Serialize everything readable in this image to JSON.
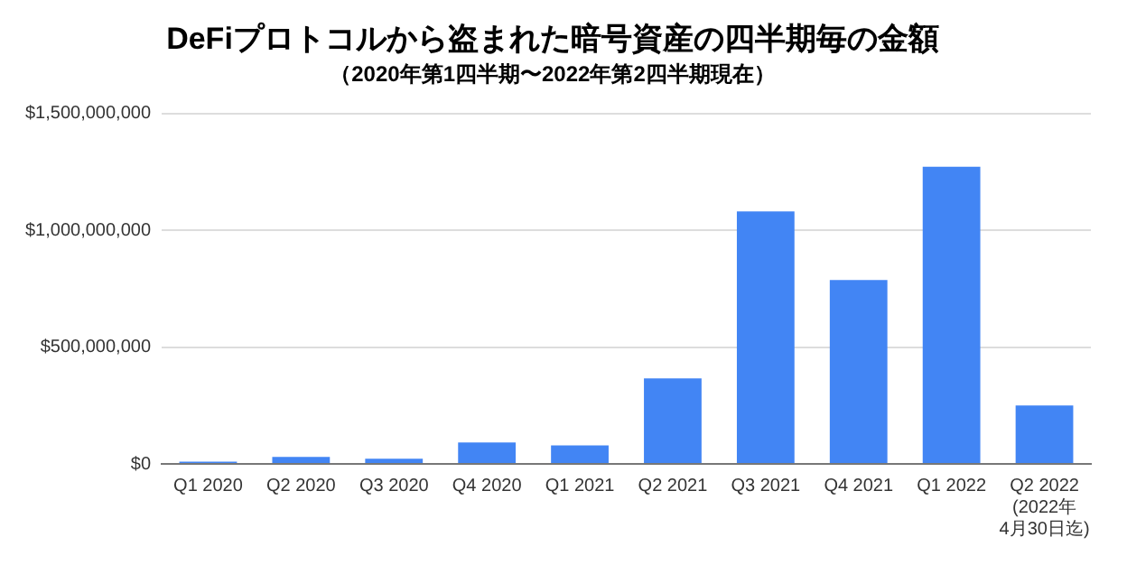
{
  "chart_data": {
    "type": "bar",
    "title": "DeFiプロトコルから盗まれた暗号資産の四半期毎の金額",
    "subtitle": "（2020年第1四半期〜2022年第2四半期現在）",
    "categories": [
      "Q1 2020",
      "Q2 2020",
      "Q3 2020",
      "Q4 2020",
      "Q1 2021",
      "Q2 2021",
      "Q3 2021",
      "Q4 2021",
      "Q1 2022",
      "Q2 2022\n(2022年\n4月30日迄)"
    ],
    "values": [
      10000000,
      30000000,
      22000000,
      92000000,
      79000000,
      366000000,
      1080000000,
      787000000,
      1272000000,
      250000000
    ],
    "color": "#4285f4",
    "ylim": [
      0,
      1500000000
    ],
    "yticks": [
      {
        "value": 0,
        "label": "$0"
      },
      {
        "value": 500000000,
        "label": "$500,000,000"
      },
      {
        "value": 1000000000,
        "label": "$1,000,000,000"
      },
      {
        "value": 1500000000,
        "label": "$1,500,000,000"
      }
    ],
    "grid": "y",
    "legend": false
  }
}
